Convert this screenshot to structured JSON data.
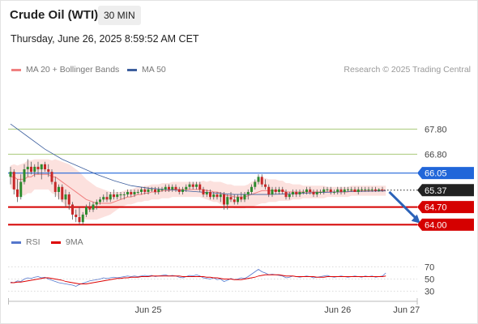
{
  "header": {
    "title": "Crude Oil (WTI)",
    "timeframe": "30 MIN",
    "datetime": "Thursday, June 26, 2025 8:59:52 AM CET"
  },
  "legend": {
    "ma20_label": "MA 20 + Bollinger Bands",
    "ma20_color": "#f08080",
    "ma50_label": "MA 50",
    "ma50_color": "#3d5f9e"
  },
  "credit": "Research © 2025 Trading Central",
  "chart_data": {
    "type": "candlestick",
    "price_range": [
      63.85,
      68.1
    ],
    "levels": [
      {
        "label": "67.80",
        "value": 67.8,
        "color": "#a8c97a",
        "style": "thin",
        "tag": "plain"
      },
      {
        "label": "66.80",
        "value": 66.8,
        "color": "#a8c97a",
        "style": "thin",
        "tag": "plain"
      },
      {
        "label": "66.05",
        "value": 66.05,
        "color": "#2166d9",
        "style": "medium",
        "tag": "blue"
      },
      {
        "label": "65.37",
        "value": 65.37,
        "color": "#222222",
        "style": "dotted",
        "tag": "dark"
      },
      {
        "label": "64.70",
        "value": 64.7,
        "color": "#d50000",
        "style": "thick",
        "tag": "red"
      },
      {
        "label": "64.00",
        "value": 64.0,
        "color": "#d50000",
        "style": "thick",
        "tag": "red"
      }
    ],
    "x_labels": [
      {
        "label": "Jun 25",
        "bar": 40
      },
      {
        "label": "Jun 26",
        "bar": 95
      },
      {
        "label": "Jun 27",
        "bar": 115
      }
    ],
    "candles": [
      [
        65.9,
        66.3,
        65.6,
        66.1
      ],
      [
        66.1,
        66.2,
        65.2,
        65.4
      ],
      [
        65.4,
        65.8,
        64.9,
        65.1
      ],
      [
        65.1,
        66.0,
        65.0,
        65.7
      ],
      [
        65.7,
        66.4,
        65.6,
        66.2
      ],
      [
        66.2,
        66.6,
        65.9,
        66.3
      ],
      [
        66.3,
        66.5,
        66.0,
        66.1
      ],
      [
        66.1,
        66.4,
        65.9,
        66.3
      ],
      [
        66.3,
        66.5,
        66.0,
        66.2
      ],
      [
        66.2,
        66.4,
        65.8,
        66.4
      ],
      [
        66.4,
        66.5,
        66.1,
        66.2
      ],
      [
        66.2,
        66.4,
        65.9,
        66.1
      ],
      [
        66.1,
        66.2,
        65.6,
        65.7
      ],
      [
        65.7,
        65.9,
        65.1,
        65.3
      ],
      [
        65.3,
        65.6,
        65.0,
        65.5
      ],
      [
        65.5,
        65.6,
        64.9,
        65.0
      ],
      [
        65.0,
        65.4,
        64.7,
        65.2
      ],
      [
        65.2,
        65.3,
        64.6,
        64.8
      ],
      [
        64.8,
        64.9,
        64.2,
        64.4
      ],
      [
        64.4,
        64.6,
        64.1,
        64.3
      ],
      [
        64.3,
        64.7,
        64.0,
        64.1
      ],
      [
        64.1,
        64.5,
        64.0,
        64.4
      ],
      [
        64.4,
        64.8,
        64.3,
        64.7
      ],
      [
        64.7,
        64.9,
        64.5,
        64.6
      ],
      [
        64.6,
        64.9,
        64.5,
        64.8
      ],
      [
        64.8,
        65.0,
        64.6,
        64.9
      ],
      [
        64.9,
        65.1,
        64.8,
        65.0
      ],
      [
        65.0,
        65.2,
        64.9,
        65.1
      ],
      [
        65.1,
        65.3,
        64.9,
        65.0
      ],
      [
        65.0,
        65.3,
        64.9,
        65.2
      ],
      [
        65.2,
        65.4,
        65.0,
        65.1
      ],
      [
        65.1,
        65.3,
        65.0,
        65.2
      ],
      [
        65.2,
        65.3,
        65.0,
        65.2
      ],
      [
        65.2,
        65.3,
        65.0,
        65.2
      ],
      [
        65.2,
        65.4,
        65.1,
        65.3
      ],
      [
        65.3,
        65.4,
        65.1,
        65.2
      ],
      [
        65.2,
        65.4,
        65.1,
        65.3
      ],
      [
        65.3,
        65.4,
        65.2,
        65.3
      ],
      [
        65.3,
        65.5,
        65.2,
        65.4
      ],
      [
        65.4,
        65.5,
        65.2,
        65.3
      ],
      [
        65.3,
        65.5,
        65.2,
        65.4
      ],
      [
        65.4,
        65.5,
        65.3,
        65.4
      ],
      [
        65.4,
        65.5,
        65.2,
        65.3
      ],
      [
        65.3,
        65.5,
        65.2,
        65.4
      ],
      [
        65.4,
        65.5,
        65.3,
        65.4
      ],
      [
        65.4,
        65.6,
        65.3,
        65.5
      ],
      [
        65.5,
        65.6,
        65.3,
        65.4
      ],
      [
        65.4,
        65.6,
        65.3,
        65.5
      ],
      [
        65.5,
        65.6,
        65.3,
        65.4
      ],
      [
        65.4,
        65.5,
        65.2,
        65.3
      ],
      [
        65.3,
        65.5,
        65.2,
        65.4
      ],
      [
        65.4,
        65.6,
        65.3,
        65.5
      ],
      [
        65.5,
        65.7,
        65.4,
        65.6
      ],
      [
        65.6,
        65.7,
        65.4,
        65.5
      ],
      [
        65.5,
        65.7,
        65.4,
        65.6
      ],
      [
        65.6,
        65.7,
        65.3,
        65.4
      ],
      [
        65.4,
        65.5,
        65.1,
        65.2
      ],
      [
        65.2,
        65.4,
        65.1,
        65.3
      ],
      [
        65.3,
        65.4,
        65.0,
        65.1
      ],
      [
        65.1,
        65.3,
        65.0,
        65.2
      ],
      [
        65.2,
        65.3,
        65.0,
        65.1
      ],
      [
        65.1,
        65.3,
        64.9,
        65.2
      ],
      [
        65.2,
        65.3,
        64.6,
        64.8
      ],
      [
        64.8,
        65.2,
        64.6,
        65.1
      ],
      [
        65.1,
        65.3,
        64.9,
        65.0
      ],
      [
        65.0,
        65.2,
        64.8,
        64.9
      ],
      [
        64.9,
        65.2,
        64.8,
        65.1
      ],
      [
        65.1,
        65.3,
        64.9,
        65.0
      ],
      [
        65.0,
        65.3,
        64.9,
        65.2
      ],
      [
        65.2,
        65.4,
        65.0,
        65.3
      ],
      [
        65.3,
        65.6,
        65.2,
        65.5
      ],
      [
        65.5,
        65.8,
        65.4,
        65.7
      ],
      [
        65.7,
        66.0,
        65.6,
        65.9
      ],
      [
        65.9,
        66.0,
        65.5,
        65.6
      ],
      [
        65.6,
        65.8,
        65.4,
        65.5
      ],
      [
        65.5,
        65.6,
        65.1,
        65.2
      ],
      [
        65.2,
        65.5,
        65.1,
        65.4
      ],
      [
        65.4,
        65.5,
        65.2,
        65.3
      ],
      [
        65.3,
        65.5,
        65.2,
        65.4
      ],
      [
        65.4,
        65.5,
        65.2,
        65.3
      ],
      [
        65.3,
        65.4,
        65.0,
        65.1
      ],
      [
        65.1,
        65.3,
        65.0,
        65.2
      ],
      [
        65.2,
        65.4,
        65.1,
        65.3
      ],
      [
        65.3,
        65.4,
        65.1,
        65.2
      ],
      [
        65.2,
        65.4,
        65.1,
        65.3
      ],
      [
        65.3,
        65.4,
        65.2,
        65.3
      ],
      [
        65.3,
        65.5,
        65.2,
        65.4
      ],
      [
        65.4,
        65.5,
        65.2,
        65.3
      ],
      [
        65.3,
        65.4,
        65.1,
        65.2
      ],
      [
        65.2,
        65.4,
        65.1,
        65.3
      ],
      [
        65.3,
        65.4,
        65.2,
        65.3
      ],
      [
        65.3,
        65.5,
        65.2,
        65.4
      ],
      [
        65.4,
        65.5,
        65.3,
        65.4
      ],
      [
        65.4,
        65.5,
        65.2,
        65.3
      ],
      [
        65.3,
        65.4,
        65.2,
        65.3
      ],
      [
        65.3,
        65.5,
        65.2,
        65.4
      ],
      [
        65.4,
        65.5,
        65.2,
        65.3
      ],
      [
        65.3,
        65.5,
        65.2,
        65.4
      ],
      [
        65.4,
        65.5,
        65.3,
        65.4
      ],
      [
        65.4,
        65.5,
        65.3,
        65.4
      ],
      [
        65.4,
        65.5,
        65.3,
        65.3
      ],
      [
        65.3,
        65.5,
        65.2,
        65.4
      ],
      [
        65.4,
        65.5,
        65.3,
        65.4
      ],
      [
        65.4,
        65.5,
        65.3,
        65.4
      ],
      [
        65.4,
        65.5,
        65.3,
        65.4
      ],
      [
        65.4,
        65.5,
        65.3,
        65.4
      ],
      [
        65.4,
        65.5,
        65.3,
        65.35
      ],
      [
        65.35,
        65.45,
        65.3,
        65.4
      ],
      [
        65.4,
        65.5,
        65.3,
        65.37
      ]
    ],
    "ma20": [
      65.9,
      65.9,
      65.8,
      65.8,
      65.8,
      65.9,
      65.9,
      66.0,
      66.0,
      66.0,
      66.0,
      66.0,
      65.9,
      65.9,
      65.8,
      65.7,
      65.6,
      65.5,
      65.4,
      65.3,
      65.2,
      65.1,
      65.0,
      64.95,
      64.9,
      64.85,
      64.85,
      64.85,
      64.85,
      64.85,
      64.9,
      64.95,
      65.0,
      65.05,
      65.1,
      65.1,
      65.15,
      65.2,
      65.2,
      65.25,
      65.25,
      65.3,
      65.3,
      65.3,
      65.35,
      65.35,
      65.35,
      65.4,
      65.4,
      65.4,
      65.4,
      65.4,
      65.4,
      65.4,
      65.4,
      65.4,
      65.4,
      65.35,
      65.35,
      65.3,
      65.3,
      65.25,
      65.2,
      65.15,
      65.15,
      65.1,
      65.1,
      65.1,
      65.1,
      65.15,
      65.2,
      65.25,
      65.3,
      65.35,
      65.35,
      65.35,
      65.35,
      65.35,
      65.35,
      65.35,
      65.3,
      65.3,
      65.3,
      65.3,
      65.3,
      65.3,
      65.3,
      65.3,
      65.3,
      65.3,
      65.3,
      65.3,
      65.3,
      65.3,
      65.3,
      65.3,
      65.3,
      65.3,
      65.3,
      65.35,
      65.35,
      65.35,
      65.35,
      65.35,
      65.35,
      65.35,
      65.35,
      65.35,
      65.35,
      65.35
    ],
    "bb_width": [
      0.45,
      0.5,
      0.55,
      0.6,
      0.65,
      0.65,
      0.65,
      0.6,
      0.6,
      0.6,
      0.6,
      0.6,
      0.65,
      0.7,
      0.75,
      0.8,
      0.85,
      0.9,
      0.9,
      0.9,
      0.9,
      0.85,
      0.8,
      0.75,
      0.7,
      0.65,
      0.6,
      0.55,
      0.5,
      0.45,
      0.4,
      0.35,
      0.3,
      0.3,
      0.3,
      0.3,
      0.3,
      0.3,
      0.3,
      0.3,
      0.3,
      0.3,
      0.3,
      0.3,
      0.3,
      0.3,
      0.3,
      0.3,
      0.3,
      0.3,
      0.3,
      0.3,
      0.3,
      0.3,
      0.3,
      0.3,
      0.35,
      0.35,
      0.4,
      0.4,
      0.4,
      0.45,
      0.45,
      0.45,
      0.45,
      0.45,
      0.45,
      0.45,
      0.45,
      0.45,
      0.5,
      0.5,
      0.5,
      0.5,
      0.5,
      0.45,
      0.45,
      0.45,
      0.4,
      0.4,
      0.35,
      0.35,
      0.3,
      0.3,
      0.3,
      0.25,
      0.25,
      0.25,
      0.25,
      0.25,
      0.25,
      0.25,
      0.2,
      0.2,
      0.2,
      0.2,
      0.2,
      0.2,
      0.2,
      0.2,
      0.2,
      0.2,
      0.2,
      0.2,
      0.2,
      0.2,
      0.2,
      0.2,
      0.2,
      0.2
    ],
    "ma50": [
      [
        0,
        68.0
      ],
      [
        5,
        67.5
      ],
      [
        10,
        67.0
      ],
      [
        15,
        66.6
      ],
      [
        20,
        66.3
      ],
      [
        25,
        66.0
      ],
      [
        30,
        65.75
      ],
      [
        35,
        65.55
      ],
      [
        40,
        65.45
      ],
      [
        45,
        65.4
      ],
      [
        50,
        65.35
      ],
      [
        55,
        65.3
      ],
      [
        60,
        65.25
      ],
      [
        65,
        65.2
      ],
      [
        70,
        65.2
      ],
      [
        75,
        65.2
      ],
      [
        80,
        65.22
      ],
      [
        85,
        65.25
      ],
      [
        90,
        65.28
      ],
      [
        95,
        65.3
      ],
      [
        100,
        65.32
      ],
      [
        105,
        65.33
      ],
      [
        109,
        65.34
      ]
    ],
    "forecast_arrow": {
      "from_bar": 110,
      "from": 65.3,
      "to_bar": 119,
      "to": 64.05,
      "color": "#2b62b8"
    },
    "rsi": {
      "ticks": [
        70,
        50,
        30
      ],
      "range": [
        20,
        80
      ],
      "rsi_label": "RSI",
      "rsi_color": "#5577cc",
      "ma_label": "9MA",
      "ma_color": "#dd0000",
      "rsi_values": [
        45,
        44,
        47,
        46,
        50,
        52,
        51,
        53,
        54,
        52,
        53,
        50,
        48,
        46,
        44,
        43,
        42,
        41,
        40,
        38,
        41,
        43,
        45,
        47,
        48,
        49,
        50,
        52,
        51,
        52,
        53,
        52,
        53,
        54,
        55,
        54,
        55,
        54,
        55,
        56,
        55,
        56,
        54,
        55,
        56,
        57,
        55,
        56,
        55,
        53,
        52,
        54,
        56,
        55,
        57,
        55,
        52,
        51,
        50,
        52,
        49,
        50,
        46,
        48,
        51,
        49,
        50,
        52,
        51,
        54,
        58,
        62,
        66,
        62,
        60,
        57,
        58,
        57,
        56,
        55,
        52,
        53,
        55,
        54,
        53,
        54,
        55,
        54,
        52,
        53,
        54,
        55,
        56,
        54,
        53,
        54,
        55,
        54,
        53,
        54,
        55,
        54,
        53,
        55,
        54,
        55,
        53,
        54,
        55,
        60
      ],
      "ma_values": [
        44,
        44,
        45,
        45,
        46,
        47,
        48,
        49,
        50,
        51,
        52,
        52,
        51,
        50,
        49,
        48,
        46,
        45,
        44,
        43,
        42,
        42,
        42,
        43,
        44,
        45,
        46,
        47,
        48,
        49,
        50,
        51,
        51,
        52,
        52,
        53,
        53,
        53,
        54,
        54,
        54,
        55,
        55,
        55,
        55,
        55,
        55,
        55,
        55,
        55,
        54,
        54,
        54,
        54,
        54,
        54,
        54,
        53,
        53,
        52,
        52,
        51,
        50,
        50,
        50,
        49,
        49,
        49,
        50,
        51,
        52,
        53,
        55,
        56,
        57,
        57,
        57,
        57,
        57,
        56,
        55,
        55,
        55,
        54,
        54,
        54,
        54,
        54,
        54,
        53,
        53,
        53,
        54,
        54,
        54,
        54,
        54,
        54,
        54,
        54,
        54,
        54,
        54,
        54,
        54,
        54,
        54,
        54,
        54,
        55
      ]
    }
  }
}
